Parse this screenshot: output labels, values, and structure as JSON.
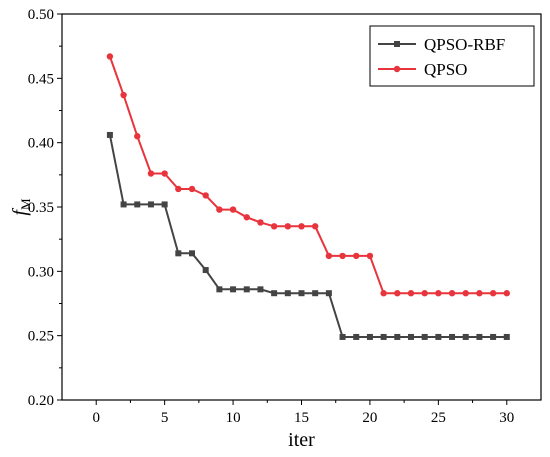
{
  "chart_data": {
    "type": "line",
    "title": "",
    "xlabel": "iter",
    "ylabel_main": "f",
    "ylabel_sub": "M",
    "xlim": [
      -2.5,
      32.5
    ],
    "ylim": [
      0.2,
      0.5
    ],
    "xticks": [
      0,
      5,
      10,
      15,
      20,
      25,
      30
    ],
    "xtick_labels": [
      "0",
      "5",
      "10",
      "15",
      "20",
      "25",
      "30"
    ],
    "yticks": [
      0.2,
      0.25,
      0.3,
      0.35,
      0.4,
      0.45,
      0.5
    ],
    "ytick_labels": [
      "0.20",
      "0.25",
      "0.30",
      "0.35",
      "0.40",
      "0.45",
      "0.50"
    ],
    "grid": false,
    "legend_position": "top-right",
    "x": [
      1,
      2,
      3,
      4,
      5,
      6,
      7,
      8,
      9,
      10,
      11,
      12,
      13,
      14,
      15,
      16,
      17,
      18,
      19,
      20,
      21,
      22,
      23,
      24,
      25,
      26,
      27,
      28,
      29,
      30
    ],
    "series": [
      {
        "name": "QPSO-RBF",
        "color": "#444444",
        "marker": "square",
        "values": [
          0.406,
          0.352,
          0.352,
          0.352,
          0.352,
          0.314,
          0.314,
          0.301,
          0.286,
          0.286,
          0.286,
          0.286,
          0.283,
          0.283,
          0.283,
          0.283,
          0.283,
          0.249,
          0.249,
          0.249,
          0.249,
          0.249,
          0.249,
          0.249,
          0.249,
          0.249,
          0.249,
          0.249,
          0.249,
          0.249
        ]
      },
      {
        "name": "QPSO",
        "color": "#e8343c",
        "marker": "circle",
        "values": [
          0.467,
          0.437,
          0.405,
          0.376,
          0.376,
          0.364,
          0.364,
          0.359,
          0.348,
          0.348,
          0.342,
          0.338,
          0.335,
          0.335,
          0.335,
          0.335,
          0.312,
          0.312,
          0.312,
          0.312,
          0.283,
          0.283,
          0.283,
          0.283,
          0.283,
          0.283,
          0.283,
          0.283,
          0.283,
          0.283
        ]
      }
    ]
  }
}
